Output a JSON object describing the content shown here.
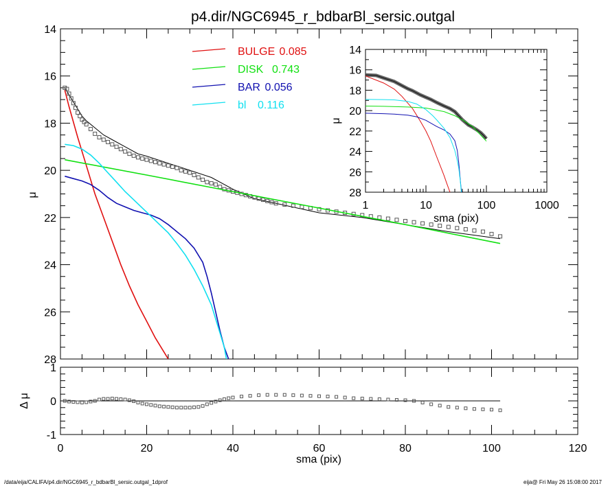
{
  "title": "p4.dir/NGC6945_r_bdbarBl_sersic.outgal",
  "footer": {
    "left": "/data/eija/CALIFA/p4.dir/NGC6945_r_bdbarBl_sersic.outgal_1dprof",
    "right": "eija@  Fri May 26 15:08:00 2017"
  },
  "colors": {
    "bulge": "#e01010",
    "disk": "#10e010",
    "bar": "#1010b0",
    "bl": "#10e0f0",
    "data": "#555555"
  },
  "chart_data": [
    {
      "panel": "main",
      "type": "line",
      "xlabel": "sma (pix)",
      "ylabel": "μ",
      "xlim": [
        0,
        120
      ],
      "ylim": [
        28,
        14
      ],
      "x_ticks": [
        0,
        20,
        40,
        60,
        80,
        100,
        120
      ],
      "x_tick_labels": [
        "0",
        "20",
        "40",
        "60",
        "80",
        "100",
        "120"
      ],
      "y_ticks": [
        14,
        16,
        18,
        20,
        22,
        24,
        26,
        28
      ],
      "y_tick_labels": [
        "14",
        "16",
        "18",
        "20",
        "22",
        "24",
        "26",
        "28"
      ],
      "legend": {
        "placement": "top-center",
        "entries": [
          {
            "key": "bulge",
            "label": "BULGE",
            "value": "0.085"
          },
          {
            "key": "disk",
            "label": "DISK",
            "value": "0.743"
          },
          {
            "key": "bar",
            "label": "BAR",
            "value": "0.056"
          },
          {
            "key": "bl",
            "label": "bl",
            "value": "0.116"
          }
        ]
      },
      "series": [
        {
          "key": "model",
          "type": "line",
          "x": [
            1,
            2,
            3,
            4,
            5,
            6,
            8,
            10,
            12,
            15,
            18,
            20,
            25,
            30,
            35,
            40,
            45,
            50,
            60,
            70,
            80,
            90,
            102
          ],
          "y": [
            16.5,
            16.8,
            17.1,
            17.4,
            17.7,
            17.9,
            18.2,
            18.5,
            18.7,
            19.0,
            19.3,
            19.4,
            19.7,
            20.0,
            20.3,
            20.8,
            21.2,
            21.4,
            21.8,
            22.0,
            22.3,
            22.6,
            22.9
          ]
        },
        {
          "key": "data",
          "type": "scatter",
          "x": [
            1,
            1.5,
            2,
            2.5,
            3,
            3.5,
            4,
            4.5,
            5,
            5.5,
            6,
            7,
            8,
            9,
            10,
            11,
            12,
            13,
            14,
            15,
            16,
            17,
            18,
            19,
            20,
            21,
            22,
            23,
            24,
            25,
            26,
            27,
            28,
            29,
            30,
            31,
            32,
            33,
            34,
            35,
            36,
            37,
            38,
            39,
            40,
            41,
            42,
            43,
            44,
            45,
            46,
            47,
            48,
            49,
            50,
            52,
            54,
            56,
            58,
            60,
            62,
            64,
            66,
            68,
            70,
            72,
            74,
            76,
            78,
            80,
            82,
            84,
            86,
            88,
            90,
            92,
            94,
            96,
            98,
            100,
            102
          ],
          "y": [
            16.5,
            16.55,
            16.75,
            16.95,
            17.15,
            17.35,
            17.55,
            17.7,
            17.85,
            17.95,
            18.05,
            18.25,
            18.45,
            18.6,
            18.7,
            18.8,
            18.9,
            19.0,
            19.1,
            19.2,
            19.3,
            19.38,
            19.45,
            19.5,
            19.55,
            19.6,
            19.65,
            19.7,
            19.75,
            19.8,
            19.85,
            19.9,
            20.0,
            20.05,
            20.1,
            20.2,
            20.3,
            20.4,
            20.5,
            20.55,
            20.6,
            20.7,
            20.8,
            20.85,
            20.9,
            20.95,
            21.0,
            21.05,
            21.1,
            21.15,
            21.2,
            21.25,
            21.3,
            21.35,
            21.4,
            21.45,
            21.5,
            21.55,
            21.6,
            21.65,
            21.7,
            21.75,
            21.8,
            21.85,
            21.9,
            21.95,
            22.0,
            22.05,
            22.1,
            22.15,
            22.2,
            22.25,
            22.3,
            22.35,
            22.4,
            22.45,
            22.5,
            22.55,
            22.6,
            22.7,
            22.8
          ]
        },
        {
          "key": "bulge",
          "name": "BULGE",
          "x": [
            1,
            2,
            4,
            6,
            8,
            10,
            12,
            14,
            16,
            18,
            20,
            22,
            24,
            25
          ],
          "y": [
            16.6,
            17.3,
            18.6,
            19.8,
            21.0,
            22.0,
            23.0,
            24.0,
            24.9,
            25.7,
            26.4,
            27.1,
            27.7,
            28.0
          ]
        },
        {
          "key": "disk",
          "name": "DISK",
          "x": [
            1,
            20,
            40,
            60,
            80,
            102
          ],
          "y": [
            19.55,
            20.2,
            20.9,
            21.6,
            22.3,
            23.1
          ]
        },
        {
          "key": "bar",
          "name": "BAR",
          "x": [
            1,
            3,
            5,
            7,
            9,
            11,
            13,
            15,
            17,
            19,
            21,
            23,
            25,
            27,
            29,
            31,
            33,
            34,
            35,
            36,
            37,
            38,
            39
          ],
          "y": [
            20.25,
            20.35,
            20.45,
            20.6,
            20.85,
            21.15,
            21.4,
            21.55,
            21.7,
            21.8,
            21.9,
            22.05,
            22.3,
            22.6,
            22.9,
            23.3,
            23.9,
            24.5,
            25.2,
            26.0,
            26.8,
            27.5,
            28.0
          ]
        },
        {
          "key": "bl",
          "name": "bl",
          "x": [
            1,
            3,
            5,
            7,
            9,
            11,
            13,
            15,
            17,
            19,
            21,
            23,
            25,
            27,
            29,
            31,
            33,
            35,
            36,
            37,
            38,
            38.5
          ],
          "y": [
            18.9,
            18.95,
            19.1,
            19.35,
            19.7,
            20.1,
            20.5,
            20.9,
            21.25,
            21.6,
            21.95,
            22.3,
            22.65,
            23.1,
            23.6,
            24.2,
            24.9,
            25.7,
            26.3,
            26.9,
            27.5,
            28.0
          ]
        }
      ]
    },
    {
      "panel": "residual",
      "type": "scatter",
      "xlabel": "sma (pix)",
      "ylabel": "Δ μ",
      "xlim": [
        0,
        120
      ],
      "ylim": [
        -1,
        1
      ],
      "y_ticks": [
        -1,
        0,
        1
      ],
      "y_tick_labels": [
        "-1",
        "0",
        "1"
      ],
      "zero_line_x": [
        1,
        102
      ],
      "series": [
        {
          "key": "residual",
          "x": [
            1,
            2,
            3,
            4,
            5,
            6,
            7,
            8,
            9,
            10,
            11,
            12,
            13,
            14,
            15,
            16,
            17,
            18,
            19,
            20,
            21,
            22,
            23,
            24,
            25,
            26,
            27,
            28,
            29,
            30,
            31,
            32,
            33,
            34,
            35,
            36,
            37,
            38,
            39,
            40,
            42,
            44,
            46,
            48,
            50,
            52,
            54,
            56,
            58,
            60,
            62,
            64,
            66,
            68,
            70,
            72,
            74,
            76,
            78,
            80,
            82,
            84,
            86,
            88,
            90,
            92,
            94,
            96,
            98,
            100,
            102
          ],
          "y": [
            0.0,
            -0.02,
            -0.03,
            -0.04,
            -0.05,
            -0.04,
            -0.02,
            0.0,
            0.04,
            0.06,
            0.06,
            0.07,
            0.06,
            0.05,
            0.04,
            0.02,
            -0.01,
            -0.05,
            -0.08,
            -0.1,
            -0.12,
            -0.14,
            -0.16,
            -0.17,
            -0.18,
            -0.19,
            -0.2,
            -0.2,
            -0.2,
            -0.2,
            -0.19,
            -0.18,
            -0.15,
            -0.1,
            -0.06,
            -0.02,
            0.02,
            0.05,
            0.08,
            0.1,
            0.13,
            0.15,
            0.17,
            0.18,
            0.18,
            0.18,
            0.17,
            0.16,
            0.15,
            0.14,
            0.13,
            0.12,
            0.1,
            0.08,
            0.07,
            0.06,
            0.05,
            0.04,
            0.03,
            0.02,
            0.0,
            -0.05,
            -0.1,
            -0.14,
            -0.18,
            -0.2,
            -0.22,
            -0.24,
            -0.25,
            -0.26,
            -0.28
          ]
        }
      ]
    },
    {
      "panel": "inset",
      "type": "line",
      "x_scale": "log",
      "xlabel": "sma (pix)",
      "ylabel": "μ",
      "xlim": [
        1,
        1000
      ],
      "ylim": [
        28,
        14
      ],
      "x_ticks": [
        1,
        10,
        100,
        1000
      ],
      "x_tick_labels": [
        "1",
        "10",
        "100",
        "1000"
      ],
      "y_ticks": [
        14,
        16,
        18,
        20,
        22,
        24,
        26,
        28
      ],
      "y_tick_labels": [
        "14",
        "16",
        "18",
        "20",
        "22",
        "24",
        "26",
        "28"
      ],
      "series": [
        {
          "key": "data",
          "x": [
            1,
            1.5,
            2,
            3,
            4,
            5,
            6,
            8,
            10,
            12,
            15,
            20,
            25,
            30,
            40,
            50,
            60,
            70,
            80,
            90,
            100
          ],
          "y": [
            16.5,
            16.55,
            16.8,
            17.15,
            17.55,
            17.85,
            18.05,
            18.45,
            18.7,
            18.9,
            19.2,
            19.55,
            19.8,
            20.1,
            20.9,
            21.4,
            21.65,
            21.9,
            22.15,
            22.45,
            22.75
          ]
        },
        {
          "key": "bulge",
          "x": [
            1,
            2,
            3,
            4,
            6,
            8,
            10,
            12,
            15,
            18,
            20,
            22,
            25
          ],
          "y": [
            16.6,
            17.3,
            17.9,
            18.6,
            19.8,
            21.0,
            22.0,
            23.0,
            24.5,
            25.7,
            26.4,
            27.1,
            28.0
          ]
        },
        {
          "key": "disk",
          "x": [
            1,
            2,
            5,
            10,
            20,
            30,
            40,
            60,
            100
          ],
          "y": [
            19.55,
            19.58,
            19.65,
            19.75,
            20.1,
            20.5,
            20.9,
            21.6,
            23.0
          ]
        },
        {
          "key": "bar",
          "x": [
            1,
            2,
            3,
            5,
            7,
            10,
            15,
            20,
            25,
            30,
            33,
            35,
            37,
            38,
            39
          ],
          "y": [
            20.25,
            20.3,
            20.35,
            20.45,
            20.6,
            20.95,
            21.55,
            21.9,
            22.3,
            22.95,
            23.9,
            25.2,
            26.8,
            27.5,
            28.0
          ]
        },
        {
          "key": "bl",
          "x": [
            1,
            2,
            3,
            5,
            7,
            10,
            13,
            15,
            20,
            25,
            30,
            33,
            35,
            37,
            38.5
          ],
          "y": [
            18.9,
            18.92,
            18.95,
            19.1,
            19.35,
            19.9,
            20.5,
            20.9,
            21.75,
            22.65,
            23.9,
            24.9,
            25.7,
            26.9,
            28.0
          ]
        }
      ]
    }
  ]
}
